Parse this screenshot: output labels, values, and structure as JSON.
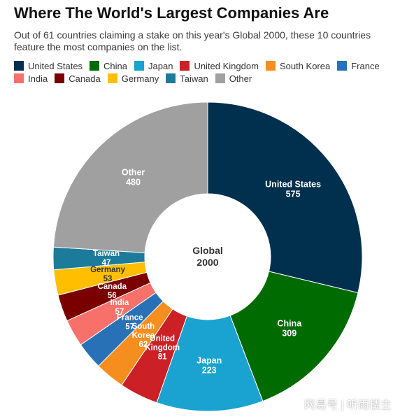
{
  "title": "Where The World's Largest Companies Are",
  "subtitle": "Out of 61 countries claiming a stake on this year's Global 2000, these 10 countries feature the most companies on the list.",
  "watermark": "网易号 | 听雨楼主",
  "chart_data": {
    "type": "pie",
    "donut": true,
    "center_label": [
      "Global",
      "2000"
    ],
    "legend_placement": "top",
    "categories": [
      "United States",
      "China",
      "Japan",
      "United Kingdom",
      "South Korea",
      "France",
      "India",
      "Canada",
      "Germany",
      "Taiwan",
      "Other"
    ],
    "values": [
      575,
      309,
      223,
      81,
      62,
      57,
      57,
      56,
      53,
      47,
      480
    ],
    "colors": [
      "#00304e",
      "#006b00",
      "#1aa3d0",
      "#cc2027",
      "#f68d1f",
      "#2871b7",
      "#f7716a",
      "#7a0000",
      "#ffbf00",
      "#1c7b9a",
      "#a0a0a0"
    ],
    "slice_labels": [
      [
        "United States",
        "575"
      ],
      [
        "China",
        "309"
      ],
      [
        "Japan",
        "223"
      ],
      [
        "United",
        "Kingdom",
        "81"
      ],
      [
        "South",
        "Korea",
        "62"
      ],
      [
        "France",
        "57"
      ],
      [
        "India",
        "57"
      ],
      [
        "Canada",
        "56"
      ],
      [
        "Germany",
        "53"
      ],
      [
        "Taiwan",
        "47"
      ],
      [
        "Other",
        "480"
      ]
    ],
    "label_colors": [
      "#ffffff",
      "#ffffff",
      "#ffffff",
      "#ffffff",
      "#ffffff",
      "#ffffff",
      "#ffffff",
      "#ffffff",
      "#333333",
      "#ffffff",
      "#ffffff"
    ]
  }
}
